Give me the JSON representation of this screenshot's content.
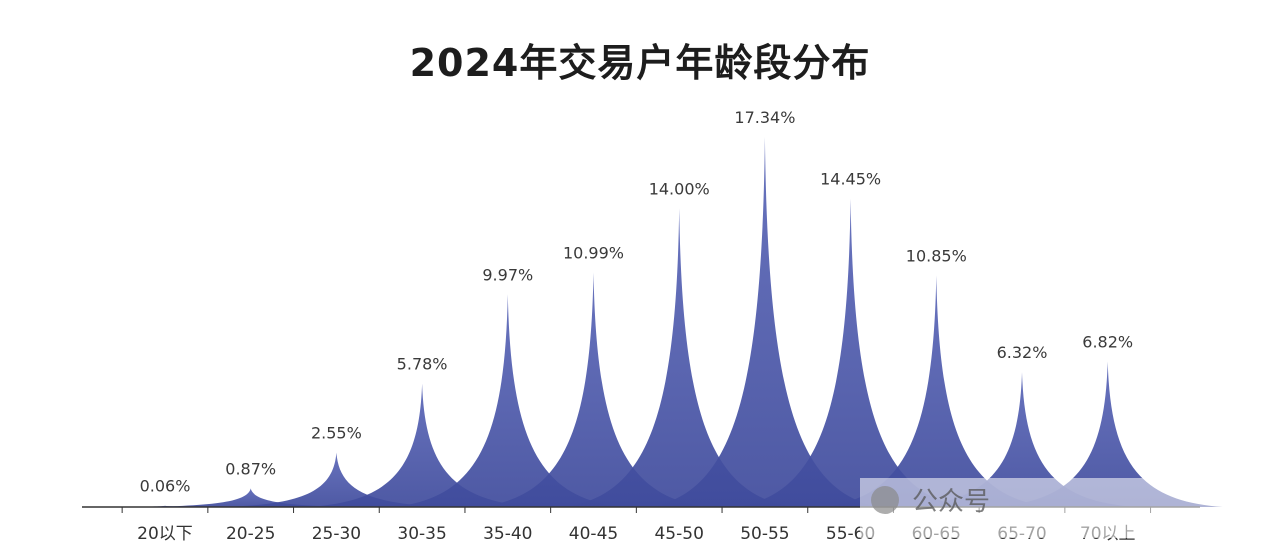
{
  "chart_data": {
    "type": "area",
    "title": "2024年交易户年龄段分布",
    "categories": [
      "20以下",
      "20-25",
      "25-30",
      "30-35",
      "35-40",
      "40-45",
      "45-50",
      "50-55",
      "55-60",
      "60-65",
      "65-70",
      "70以上"
    ],
    "values": [
      0.06,
      0.87,
      2.55,
      5.78,
      9.97,
      10.99,
      14.0,
      17.34,
      14.45,
      10.85,
      6.32,
      6.82
    ],
    "value_labels": [
      "0.06%",
      "0.87%",
      "2.55%",
      "5.78%",
      "9.97%",
      "10.99%",
      "14.00%",
      "17.34%",
      "14.45%",
      "10.85%",
      "6.32%",
      "6.82%"
    ],
    "xlabel": "",
    "ylabel": "",
    "ylim": [
      0,
      17.34
    ],
    "grid": false,
    "color": "#4b58a8"
  },
  "watermark": {
    "text": "公众号"
  }
}
